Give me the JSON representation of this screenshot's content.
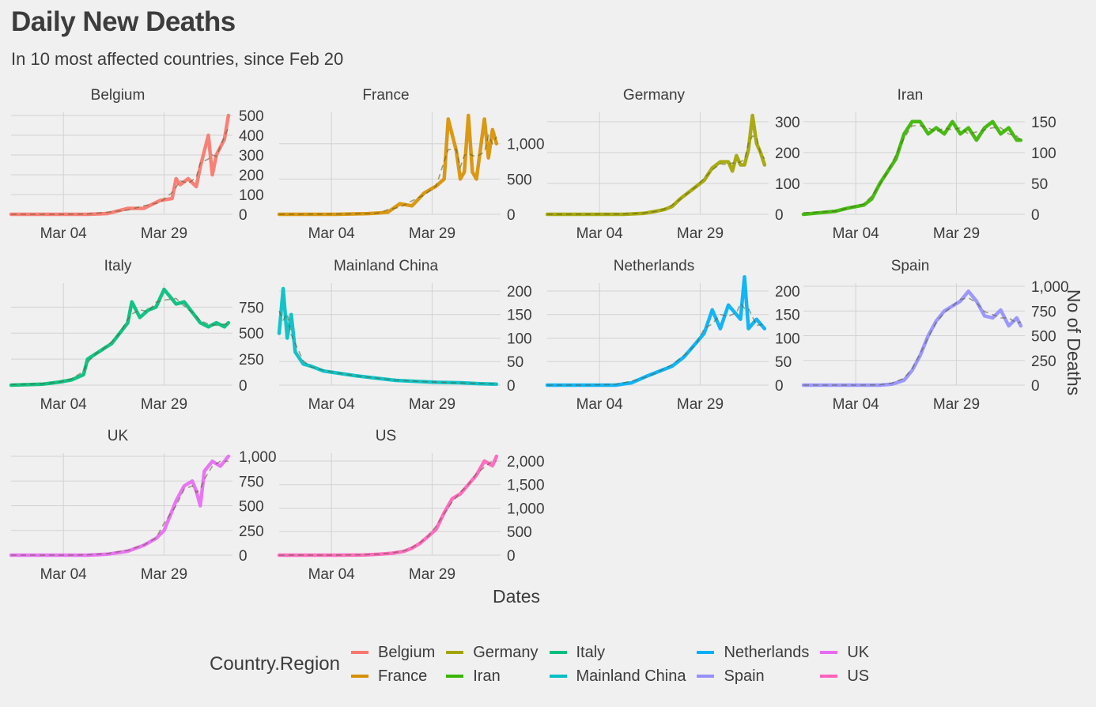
{
  "title": "Daily New Deaths",
  "subtitle": "In 10 most affected countries, since Feb 20",
  "legend": {
    "title": "Country.Region",
    "items": [
      {
        "label": "Belgium",
        "color": "#F8766D"
      },
      {
        "label": "France",
        "color": "#D89000"
      },
      {
        "label": "Germany",
        "color": "#A3A500"
      },
      {
        "label": "Iran",
        "color": "#39B600"
      },
      {
        "label": "Italy",
        "color": "#00BF7D"
      },
      {
        "label": "Mainland China",
        "color": "#00BFC4"
      },
      {
        "label": "Netherlands",
        "color": "#00B0F6"
      },
      {
        "label": "Spain",
        "color": "#9590FF"
      },
      {
        "label": "UK",
        "color": "#E76BF3"
      },
      {
        "label": "US",
        "color": "#FF62BC"
      }
    ]
  },
  "chart_data": {
    "type": "line",
    "facet_layout": "faceted by country, 4 columns, free y scales, y axis on right",
    "xlabel": "Dates",
    "ylabel": "No of Deaths",
    "x_ticks": [
      "Mar 04",
      "Mar 29"
    ],
    "x_range": [
      "Feb 20",
      "Apr 15"
    ],
    "grid": true,
    "legend_position": "bottom",
    "trend_line": "dashed smoothed trend overlay per panel",
    "panels": [
      {
        "name": "Belgium",
        "color": "#F8766D",
        "ylim": [
          0,
          500
        ],
        "y_ticks": [
          "0",
          "100",
          "200",
          "300",
          "400",
          "500"
        ],
        "x": [
          "Feb 20",
          "Mar 01",
          "Mar 10",
          "Mar 15",
          "Mar 20",
          "Mar 24",
          "Mar 28",
          "Mar 31",
          "Apr 01",
          "Apr 02",
          "Apr 04",
          "Apr 06",
          "Apr 07",
          "Apr 09",
          "Apr 10",
          "Apr 11",
          "Apr 13",
          "Apr 14"
        ],
        "values": [
          0,
          0,
          0,
          4,
          30,
          30,
          70,
          80,
          180,
          150,
          180,
          140,
          240,
          400,
          200,
          300,
          380,
          500
        ]
      },
      {
        "name": "France",
        "color": "#D89000",
        "ylim": [
          0,
          1400
        ],
        "y_ticks": [
          "0",
          "500",
          "1,000"
        ],
        "x": [
          "Feb 20",
          "Mar 05",
          "Mar 13",
          "Mar 16",
          "Mar 18",
          "Mar 21",
          "Mar 24",
          "Mar 27",
          "Mar 30",
          "Apr 01",
          "Apr 02",
          "Apr 04",
          "Apr 05",
          "Apr 06",
          "Apr 07",
          "Apr 08",
          "Apr 09",
          "Apr 11",
          "Apr 12",
          "Apr 13",
          "Apr 14"
        ],
        "values": [
          0,
          0,
          10,
          20,
          30,
          150,
          120,
          300,
          400,
          500,
          1350,
          900,
          500,
          600,
          1400,
          600,
          500,
          1350,
          800,
          1200,
          1000
        ]
      },
      {
        "name": "Germany",
        "color": "#A3A500",
        "ylim": [
          0,
          320
        ],
        "y_ticks": [
          "0",
          "100",
          "200",
          "300"
        ],
        "x": [
          "Feb 20",
          "Mar 10",
          "Mar 15",
          "Mar 18",
          "Mar 20",
          "Mar 22",
          "Mar 24",
          "Mar 26",
          "Mar 28",
          "Mar 30",
          "Apr 01",
          "Apr 03",
          "Apr 05",
          "Apr 06",
          "Apr 07",
          "Apr 08",
          "Apr 09",
          "Apr 10",
          "Apr 11",
          "Apr 12",
          "Apr 13",
          "Apr 14"
        ],
        "values": [
          0,
          0,
          3,
          10,
          15,
          25,
          50,
          70,
          90,
          110,
          150,
          170,
          170,
          140,
          190,
          160,
          160,
          210,
          320,
          230,
          200,
          160
        ]
      },
      {
        "name": "Iran",
        "color": "#39B600",
        "ylim": [
          0,
          160
        ],
        "y_ticks": [
          "0",
          "50",
          "100",
          "150"
        ],
        "x": [
          "Feb 20",
          "Feb 28",
          "Mar 02",
          "Mar 06",
          "Mar 08",
          "Mar 10",
          "Mar 12",
          "Mar 14",
          "Mar 16",
          "Mar 18",
          "Mar 20",
          "Mar 22",
          "Mar 24",
          "Mar 26",
          "Mar 28",
          "Mar 30",
          "Apr 01",
          "Apr 03",
          "Apr 05",
          "Apr 07",
          "Apr 09",
          "Apr 11",
          "Apr 13",
          "Apr 14"
        ],
        "values": [
          0,
          5,
          10,
          15,
          25,
          50,
          70,
          90,
          130,
          150,
          150,
          130,
          140,
          130,
          150,
          130,
          140,
          120,
          140,
          150,
          130,
          140,
          120,
          120
        ]
      },
      {
        "name": "Italy",
        "color": "#00BF7D",
        "ylim": [
          0,
          950
        ],
        "y_ticks": [
          "0",
          "250",
          "500",
          "750"
        ],
        "x": [
          "Feb 20",
          "Feb 28",
          "Mar 03",
          "Mar 06",
          "Mar 09",
          "Mar 10",
          "Mar 12",
          "Mar 14",
          "Mar 16",
          "Mar 18",
          "Mar 20",
          "Mar 21",
          "Mar 23",
          "Mar 25",
          "Mar 27",
          "Mar 29",
          "Apr 01",
          "Apr 03",
          "Apr 05",
          "Apr 07",
          "Apr 09",
          "Apr 11",
          "Apr 13",
          "Apr 14"
        ],
        "values": [
          0,
          10,
          30,
          50,
          100,
          250,
          300,
          350,
          400,
          500,
          600,
          800,
          650,
          720,
          750,
          920,
          780,
          800,
          700,
          600,
          560,
          600,
          560,
          600
        ]
      },
      {
        "name": "Mainland China",
        "color": "#00BFC4",
        "ylim": [
          0,
          210
        ],
        "y_ticks": [
          "0",
          "50",
          "100",
          "150",
          "200"
        ],
        "x": [
          "Feb 20",
          "Feb 21",
          "Feb 22",
          "Feb 23",
          "Feb 24",
          "Feb 26",
          "Feb 28",
          "Mar 02",
          "Mar 06",
          "Mar 10",
          "Mar 15",
          "Mar 20",
          "Mar 25",
          "Mar 30",
          "Apr 05",
          "Apr 10",
          "Apr 14"
        ],
        "values": [
          110,
          205,
          100,
          150,
          70,
          45,
          40,
          30,
          25,
          20,
          15,
          10,
          8,
          6,
          5,
          3,
          2
        ]
      },
      {
        "name": "Netherlands",
        "color": "#00B0F6",
        "ylim": [
          0,
          210
        ],
        "y_ticks": [
          "0",
          "50",
          "100",
          "150",
          "200"
        ],
        "x": [
          "Feb 20",
          "Mar 01",
          "Mar 08",
          "Mar 12",
          "Mar 16",
          "Mar 19",
          "Mar 22",
          "Mar 25",
          "Mar 28",
          "Mar 30",
          "Apr 01",
          "Apr 03",
          "Apr 05",
          "Apr 07",
          "Apr 08",
          "Apr 09",
          "Apr 10",
          "Apr 12",
          "Apr 14"
        ],
        "values": [
          0,
          0,
          0,
          5,
          20,
          30,
          40,
          60,
          90,
          110,
          160,
          120,
          170,
          150,
          140,
          230,
          120,
          140,
          120
        ]
      },
      {
        "name": "Spain",
        "color": "#9590FF",
        "ylim": [
          0,
          1000
        ],
        "y_ticks": [
          "0",
          "250",
          "500",
          "750",
          "1,000"
        ],
        "x": [
          "Feb 20",
          "Mar 05",
          "Mar 10",
          "Mar 13",
          "Mar 16",
          "Mar 18",
          "Mar 20",
          "Mar 22",
          "Mar 24",
          "Mar 26",
          "Mar 28",
          "Mar 30",
          "Apr 01",
          "Apr 03",
          "Apr 05",
          "Apr 07",
          "Apr 09",
          "Apr 11",
          "Apr 13",
          "Apr 14"
        ],
        "values": [
          0,
          0,
          0,
          10,
          50,
          150,
          300,
          500,
          650,
          750,
          800,
          850,
          950,
          850,
          700,
          680,
          760,
          600,
          680,
          600
        ]
      },
      {
        "name": "UK",
        "color": "#E76BF3",
        "ylim": [
          0,
          1000
        ],
        "y_ticks": [
          "0",
          "250",
          "500",
          "750",
          "1,000"
        ],
        "x": [
          "Feb 20",
          "Mar 05",
          "Mar 10",
          "Mar 15",
          "Mar 20",
          "Mar 24",
          "Mar 27",
          "Mar 29",
          "Apr 01",
          "Apr 03",
          "Apr 05",
          "Apr 06",
          "Apr 07",
          "Apr 08",
          "Apr 10",
          "Apr 12",
          "Apr 14"
        ],
        "values": [
          0,
          0,
          0,
          10,
          40,
          100,
          170,
          250,
          550,
          700,
          750,
          650,
          500,
          850,
          950,
          900,
          1000
        ]
      },
      {
        "name": "US",
        "color": "#FF62BC",
        "ylim": [
          0,
          2100
        ],
        "y_ticks": [
          "0",
          "500",
          "1,000",
          "1,500",
          "2,000"
        ],
        "x": [
          "Feb 20",
          "Mar 05",
          "Mar 12",
          "Mar 16",
          "Mar 19",
          "Mar 22",
          "Mar 24",
          "Mar 26",
          "Mar 28",
          "Mar 30",
          "Apr 01",
          "Apr 03",
          "Apr 05",
          "Apr 07",
          "Apr 09",
          "Apr 11",
          "Apr 13",
          "Apr 14"
        ],
        "values": [
          0,
          0,
          5,
          20,
          40,
          80,
          150,
          250,
          400,
          550,
          900,
          1200,
          1300,
          1500,
          1700,
          2000,
          1900,
          2100
        ]
      }
    ]
  }
}
